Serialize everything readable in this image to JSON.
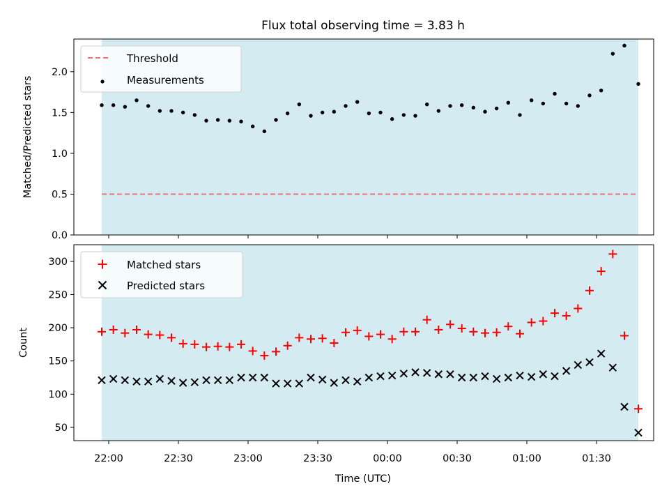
{
  "title": "Flux total observing time = 3.83 h",
  "colors": {
    "span": "#d3ebf1",
    "threshold": "#ec7575",
    "matched": "#ff0000",
    "predicted": "#000000",
    "measurement": "#000000"
  },
  "chart_data": [
    {
      "type": "scatter",
      "ylabel": "Matched/Predicted stars",
      "ylim": [
        0,
        2.4
      ],
      "yticks": [
        "0.0",
        "0.5",
        "1.0",
        "1.5",
        "2.0"
      ],
      "legend": {
        "placement": "top-left",
        "entries": [
          "Threshold",
          "Measurements"
        ]
      },
      "threshold": {
        "name": "Threshold",
        "value": 0.5,
        "style": "dashed"
      },
      "shaded_span": [
        "21:57",
        "01:48"
      ],
      "series": [
        {
          "name": "Measurements",
          "x": [
            "21:57",
            "22:02",
            "22:07",
            "22:12",
            "22:17",
            "22:22",
            "22:27",
            "22:32",
            "22:37",
            "22:42",
            "22:47",
            "22:52",
            "22:57",
            "23:02",
            "23:07",
            "23:12",
            "23:17",
            "23:22",
            "23:27",
            "23:32",
            "23:37",
            "23:42",
            "23:47",
            "23:52",
            "23:57",
            "00:02",
            "00:07",
            "00:12",
            "00:17",
            "00:22",
            "00:27",
            "00:32",
            "00:37",
            "00:42",
            "00:47",
            "00:52",
            "00:57",
            "01:02",
            "01:07",
            "01:12",
            "01:17",
            "01:22",
            "01:27",
            "01:32",
            "01:37",
            "01:42",
            "01:48"
          ],
          "values": [
            1.59,
            1.59,
            1.57,
            1.65,
            1.58,
            1.52,
            1.52,
            1.5,
            1.47,
            1.4,
            1.41,
            1.4,
            1.39,
            1.33,
            1.27,
            1.41,
            1.49,
            1.6,
            1.46,
            1.5,
            1.51,
            1.58,
            1.63,
            1.49,
            1.5,
            1.42,
            1.47,
            1.46,
            1.6,
            1.52,
            1.58,
            1.59,
            1.56,
            1.51,
            1.55,
            1.62,
            1.47,
            1.65,
            1.61,
            1.73,
            1.61,
            1.58,
            1.71,
            1.77,
            2.22,
            2.32,
            1.85
          ]
        }
      ]
    },
    {
      "type": "scatter",
      "ylabel": "Count",
      "xlabel": "Time (UTC)",
      "ylim": [
        30,
        325
      ],
      "yticks": [
        "50",
        "100",
        "150",
        "200",
        "250",
        "300"
      ],
      "xticks": [
        "22:00",
        "22:30",
        "23:00",
        "23:30",
        "00:00",
        "00:30",
        "01:00",
        "01:30"
      ],
      "legend": {
        "placement": "top-left",
        "entries": [
          "Matched stars",
          "Predicted stars"
        ]
      },
      "shaded_span": [
        "21:57",
        "01:48"
      ],
      "series": [
        {
          "name": "Matched stars",
          "marker": "plus",
          "x": [
            "21:57",
            "22:02",
            "22:07",
            "22:12",
            "22:17",
            "22:22",
            "22:27",
            "22:32",
            "22:37",
            "22:42",
            "22:47",
            "22:52",
            "22:57",
            "23:02",
            "23:07",
            "23:12",
            "23:17",
            "23:22",
            "23:27",
            "23:32",
            "23:37",
            "23:42",
            "23:47",
            "23:52",
            "23:57",
            "00:02",
            "00:07",
            "00:12",
            "00:17",
            "00:22",
            "00:27",
            "00:32",
            "00:37",
            "00:42",
            "00:47",
            "00:52",
            "00:57",
            "01:02",
            "01:07",
            "01:12",
            "01:17",
            "01:22",
            "01:27",
            "01:32",
            "01:37",
            "01:42",
            "01:48"
          ],
          "values": [
            194,
            197,
            192,
            197,
            190,
            189,
            185,
            176,
            175,
            171,
            172,
            171,
            175,
            165,
            158,
            164,
            173,
            185,
            183,
            184,
            177,
            193,
            196,
            187,
            190,
            183,
            194,
            194,
            212,
            197,
            205,
            199,
            194,
            192,
            193,
            202,
            191,
            208,
            210,
            222,
            218,
            229,
            256,
            285,
            311,
            188,
            78
          ]
        },
        {
          "name": "Predicted stars",
          "marker": "x",
          "x": [
            "21:57",
            "22:02",
            "22:07",
            "22:12",
            "22:17",
            "22:22",
            "22:27",
            "22:32",
            "22:37",
            "22:42",
            "22:47",
            "22:52",
            "22:57",
            "23:02",
            "23:07",
            "23:12",
            "23:17",
            "23:22",
            "23:27",
            "23:32",
            "23:37",
            "23:42",
            "23:47",
            "23:52",
            "23:57",
            "00:02",
            "00:07",
            "00:12",
            "00:17",
            "00:22",
            "00:27",
            "00:32",
            "00:37",
            "00:42",
            "00:47",
            "00:52",
            "00:57",
            "01:02",
            "01:07",
            "01:12",
            "01:17",
            "01:22",
            "01:27",
            "01:32",
            "01:37",
            "01:42",
            "01:48"
          ],
          "values": [
            121,
            123,
            121,
            119,
            119,
            123,
            120,
            117,
            118,
            121,
            121,
            121,
            125,
            125,
            125,
            116,
            116,
            116,
            125,
            122,
            117,
            121,
            119,
            125,
            127,
            128,
            131,
            133,
            132,
            130,
            130,
            125,
            125,
            127,
            123,
            125,
            128,
            126,
            130,
            127,
            135,
            144,
            148,
            161,
            140,
            81,
            42
          ]
        }
      ]
    }
  ]
}
